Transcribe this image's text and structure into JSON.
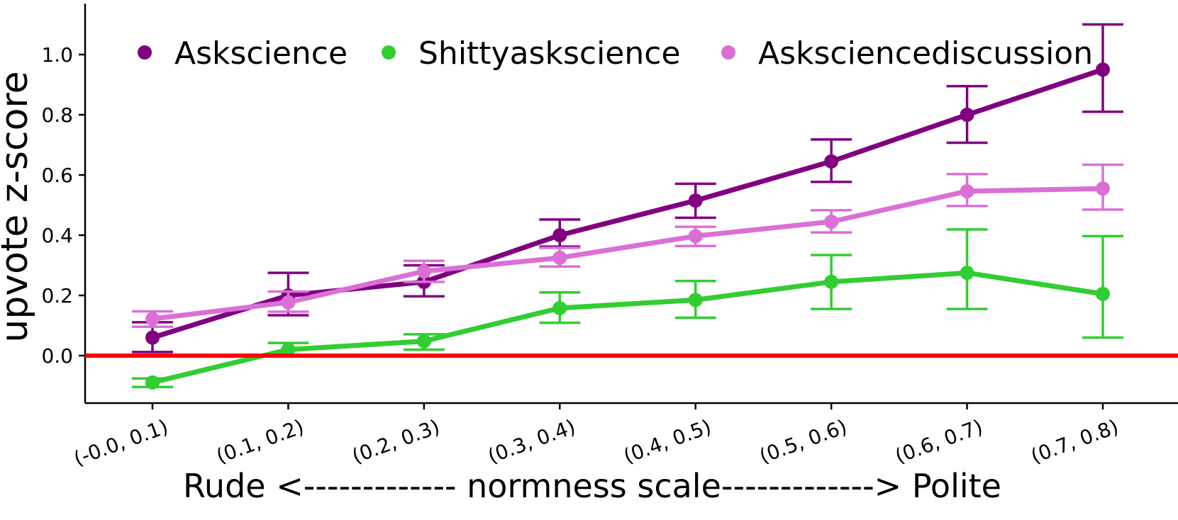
{
  "figure": {
    "background": "#ffffff"
  },
  "legend": {
    "position": "top",
    "items": [
      {
        "label": "Askscience",
        "color": "#800080"
      },
      {
        "label": "Shittyaskscience",
        "color": "#32CD32"
      },
      {
        "label": "Asksciencediscussion",
        "color": "#DA70D6"
      }
    ]
  },
  "chart_data": {
    "type": "line",
    "title": "",
    "xlabel": "Rude <------------- normness scale-------------> Polite",
    "ylabel": "upvote z-score",
    "categories": [
      "(-0.0, 0.1)",
      "(0.1, 0.2)",
      "(0.2, 0.3)",
      "(0.3, 0.4)",
      "(0.4, 0.5)",
      "(0.5, 0.6)",
      "(0.6, 0.7)",
      "(0.7, 0.8)"
    ],
    "ytick_labels": [
      "0.0",
      "0.2",
      "0.4",
      "0.6",
      "0.8",
      "1.0"
    ],
    "yticks": [
      0.0,
      0.2,
      0.4,
      0.6,
      0.8,
      1.0
    ],
    "ylim": [
      -0.17,
      1.13
    ],
    "grid": false,
    "legend_position": "top-inside",
    "zero_line": {
      "y": 0.0,
      "color": "#FF0000"
    },
    "marker": "circle",
    "error_bars": true,
    "series": [
      {
        "name": "Askscience",
        "color": "#800080",
        "values": [
          0.06,
          0.2,
          0.245,
          0.4,
          0.515,
          0.645,
          0.8,
          0.95
        ],
        "err_lo": [
          0.012,
          0.134,
          0.197,
          0.362,
          0.458,
          0.577,
          0.707,
          0.81
        ],
        "err_hi": [
          0.111,
          0.275,
          0.3,
          0.452,
          0.571,
          0.718,
          0.895,
          1.1
        ]
      },
      {
        "name": "Shittyaskscience",
        "color": "#32CD32",
        "values": [
          -0.089,
          0.02,
          0.048,
          0.158,
          0.185,
          0.245,
          0.275,
          0.205
        ],
        "err_lo": [
          -0.104,
          0.0,
          0.02,
          0.109,
          0.126,
          0.155,
          0.155,
          0.06
        ],
        "err_hi": [
          -0.076,
          0.042,
          0.071,
          0.21,
          0.248,
          0.334,
          0.419,
          0.397
        ]
      },
      {
        "name": "Asksciencediscussion",
        "color": "#DA70D6",
        "values": [
          0.122,
          0.177,
          0.28,
          0.325,
          0.397,
          0.445,
          0.546,
          0.555
        ],
        "err_lo": [
          0.096,
          0.146,
          0.245,
          0.296,
          0.364,
          0.409,
          0.497,
          0.485
        ],
        "err_hi": [
          0.147,
          0.213,
          0.315,
          0.358,
          0.428,
          0.483,
          0.603,
          0.634
        ]
      }
    ]
  }
}
